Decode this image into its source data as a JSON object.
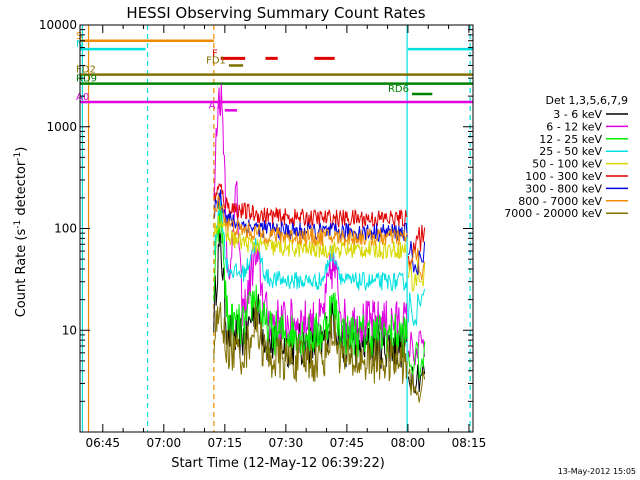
{
  "chart_data": {
    "type": "line",
    "title": "HESSI Observing Summary Count Rates",
    "xlabel": "Start Time (12-May-12 06:39:22)",
    "ylabel_main": "Count Rate (s",
    "ylabel_sup1": "-1",
    "ylabel_mid": " detector",
    "ylabel_sup2": "-1",
    "ylabel_end": ")",
    "yscale": "log",
    "ylim": [
      1,
      10000
    ],
    "xlim_min": [
      399.4,
      496.0
    ],
    "x_ticks": [
      {
        "min": 405,
        "label": "06:45"
      },
      {
        "min": 420,
        "label": "07:00"
      },
      {
        "min": 435,
        "label": "07:15"
      },
      {
        "min": 450,
        "label": "07:30"
      },
      {
        "min": 465,
        "label": "07:45"
      },
      {
        "min": 480,
        "label": "08:00"
      },
      {
        "min": 495,
        "label": "08:15"
      }
    ],
    "y_ticks": [
      {
        "value": 10,
        "label": "10"
      },
      {
        "value": 100,
        "label": "100"
      },
      {
        "value": 1000,
        "label": "1000"
      },
      {
        "value": 10000,
        "label": "10000"
      }
    ],
    "legend_title": "Det 1,3,5,6,7,9",
    "series": [
      {
        "name": "3 - 6 keV",
        "color": "#000000",
        "base": 7,
        "peak": 60,
        "start": 432.3,
        "end": 479.8
      },
      {
        "name": "6 - 12 keV",
        "color": "#e000e0",
        "base": 12,
        "peak": 2100,
        "start": 432.3,
        "end": 479.8
      },
      {
        "name": "12 - 25 keV",
        "color": "#00ee00",
        "base": 9,
        "peak": 120,
        "start": 432.3,
        "end": 479.8
      },
      {
        "name": "25 - 50 keV",
        "color": "#00e0e0",
        "base": 30,
        "peak": 160,
        "start": 432.3,
        "end": 479.8
      },
      {
        "name": "50 - 100 keV",
        "color": "#d8d800",
        "base": 62,
        "peak": 95,
        "start": 432.3,
        "end": 479.8
      },
      {
        "name": "100 - 300 keV",
        "color": "#e00000",
        "base": 125,
        "peak": 190,
        "start": 432.3,
        "end": 479.8
      },
      {
        "name": "300 - 800 keV",
        "color": "#0000e0",
        "base": 92,
        "peak": 170,
        "start": 432.3,
        "end": 479.8
      },
      {
        "name": "800 - 7000 keV",
        "color": "#f08c00",
        "base": 82,
        "peak": 150,
        "start": 432.3,
        "end": 479.8
      },
      {
        "name": "7000 - 20000 keV",
        "color": "#807000",
        "base": 5,
        "peak": 11,
        "start": 432.3,
        "end": 479.8
      }
    ],
    "flag_bars": [
      {
        "label": "S",
        "color": "#f08c00",
        "y": 7000,
        "x1": 399.4,
        "x2": 432.3
      },
      {
        "label": "N",
        "color": "#00e0e0",
        "y": 5800,
        "x1": 399.4,
        "x2": 415.5
      },
      {
        "label": "",
        "color": "#00e0e0",
        "y": 5800,
        "x1": 480.0,
        "x2": 496.0
      },
      {
        "label": "F",
        "color": "#e00000",
        "y": 4700,
        "x1": 434.0,
        "x2": 440.0,
        "dashed": true
      },
      {
        "label": "",
        "color": "#e00000",
        "y": 4700,
        "x1": 445.0,
        "x2": 448.0,
        "dashed": true
      },
      {
        "label": "",
        "color": "#e00000",
        "y": 4700,
        "x1": 457.0,
        "x2": 462.0,
        "dashed": true
      },
      {
        "label": "FD1",
        "color": "#807000",
        "y": 4000,
        "x1": 436.0,
        "x2": 439.5
      },
      {
        "label": "FD2",
        "color": "#807000",
        "y": 3250,
        "x1": 399.4,
        "x2": 496.0
      },
      {
        "label": "RD9",
        "color": "#008000",
        "y": 2650,
        "x1": 399.4,
        "x2": 496.0
      },
      {
        "label": "RD6",
        "color": "#008000",
        "y": 2100,
        "x1": 481.0,
        "x2": 486.0
      },
      {
        "label": "A0",
        "color": "#e000e0",
        "y": 1750,
        "x1": 399.4,
        "x2": 496.0
      },
      {
        "label": "A1",
        "color": "#e000e0",
        "y": 1450,
        "x1": 435.0,
        "x2": 438.0
      }
    ],
    "vlines": [
      {
        "min": 400.0,
        "color": "#00e0e0",
        "dashed": false
      },
      {
        "min": 401.5,
        "color": "#f08c00",
        "dashed": false
      },
      {
        "min": 416.0,
        "color": "#00e0e0",
        "dashed": true
      },
      {
        "min": 432.3,
        "color": "#f08c00",
        "dashed": true
      },
      {
        "min": 479.8,
        "color": "#00e0e0",
        "dashed": false
      },
      {
        "min": 495.3,
        "color": "#00e0e0",
        "dashed": true
      }
    ],
    "footer_date": "13-May-2012 15:05"
  }
}
